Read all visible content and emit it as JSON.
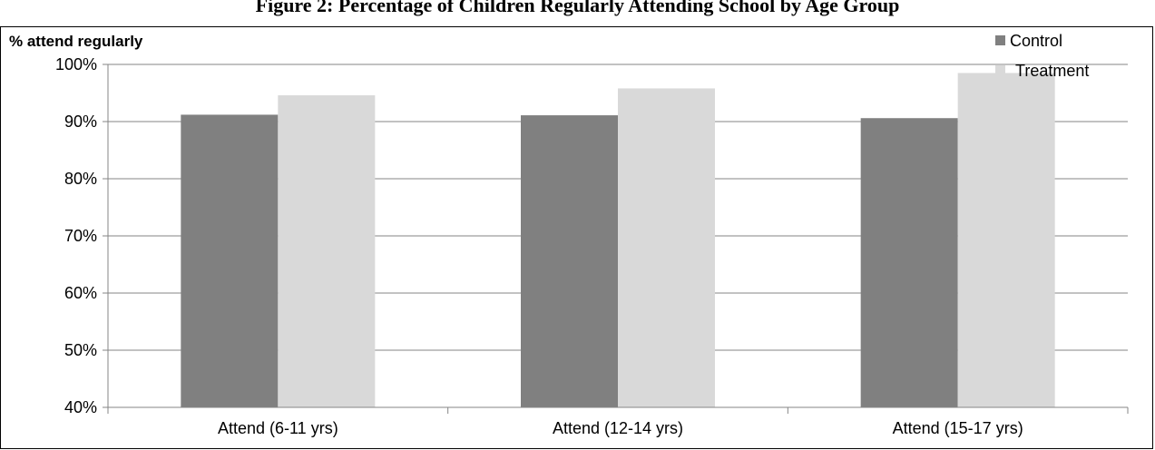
{
  "chart_data": {
    "type": "bar",
    "title": "Figure 2: Percentage of Children Regularly Attending School by Age Group",
    "ylabel": "% attend regularly",
    "xlabel": "",
    "categories": [
      "Attend (6-11 yrs)",
      "Attend (12-14 yrs)",
      "Attend (15-17 yrs)"
    ],
    "series": [
      {
        "name": "Control",
        "values": [
          91.2,
          91.1,
          90.6
        ],
        "color": "#808080"
      },
      {
        "name": "Treatment",
        "values": [
          94.6,
          95.8,
          98.5
        ],
        "color": "#d9d9d9"
      }
    ],
    "ylim": [
      40,
      100
    ],
    "yticks": [
      40,
      50,
      60,
      70,
      80,
      90,
      100
    ],
    "ytick_labels": [
      "40%",
      "50%",
      "60%",
      "70%",
      "80%",
      "90%",
      "100%"
    ],
    "grid": true,
    "legend_position": "top-right"
  }
}
